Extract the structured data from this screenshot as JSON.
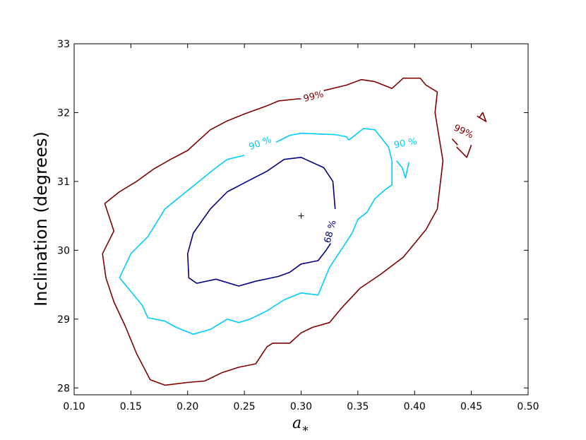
{
  "chart_data": {
    "type": "contour",
    "title": "",
    "xlabel": "a",
    "xlabel_subscript": "∗",
    "ylabel": "Inclination (degrees)",
    "xlim": [
      0.1,
      0.5
    ],
    "ylim": [
      27.9,
      33.0
    ],
    "grid": false,
    "xticks": [
      "0.10",
      "0.15",
      "0.20",
      "0.25",
      "0.30",
      "0.35",
      "0.40",
      "0.45",
      "0.50"
    ],
    "yticks": [
      "28",
      "29",
      "30",
      "31",
      "32",
      "33"
    ],
    "best_fit": {
      "x": 0.3,
      "y": 30.5
    },
    "contours": [
      {
        "level": "68 %",
        "color": "#000080",
        "segments": [
          [
            [
              0.33,
              30.6
            ],
            [
              0.328,
              31.0
            ],
            [
              0.32,
              31.2
            ],
            [
              0.3,
              31.35
            ],
            [
              0.285,
              31.32
            ],
            [
              0.27,
              31.15
            ],
            [
              0.25,
              30.98
            ],
            [
              0.235,
              30.85
            ],
            [
              0.22,
              30.6
            ],
            [
              0.205,
              30.25
            ],
            [
              0.2,
              29.95
            ],
            [
              0.201,
              29.6
            ],
            [
              0.208,
              29.52
            ],
            [
              0.225,
              29.58
            ],
            [
              0.245,
              29.48
            ],
            [
              0.26,
              29.55
            ],
            [
              0.28,
              29.62
            ],
            [
              0.29,
              29.68
            ],
            [
              0.3,
              29.8
            ],
            [
              0.315,
              29.85
            ],
            [
              0.322,
              30.0
            ],
            [
              0.326,
              30.1
            ]
          ]
        ],
        "labels": [
          {
            "text": "68 %",
            "x": 0.326,
            "y": 30.27,
            "angle": -75
          }
        ]
      },
      {
        "level": "90 %",
        "color": "#00ccff",
        "segments": [
          [
            [
              0.342,
              31.6
            ],
            [
              0.355,
              31.77
            ],
            [
              0.365,
              31.75
            ],
            [
              0.377,
              31.5
            ],
            [
              0.38,
              31.3
            ],
            [
              0.38,
              30.95
            ],
            [
              0.374,
              30.88
            ],
            [
              0.365,
              30.75
            ],
            [
              0.358,
              30.55
            ],
            [
              0.35,
              30.45
            ],
            [
              0.345,
              30.25
            ],
            [
              0.335,
              30.0
            ],
            [
              0.325,
              29.75
            ],
            [
              0.315,
              29.35
            ],
            [
              0.3,
              29.38
            ],
            [
              0.285,
              29.28
            ],
            [
              0.27,
              29.12
            ],
            [
              0.255,
              29.0
            ],
            [
              0.245,
              28.95
            ],
            [
              0.235,
              29.0
            ],
            [
              0.22,
              28.85
            ],
            [
              0.205,
              28.78
            ],
            [
              0.19,
              28.88
            ],
            [
              0.18,
              28.97
            ],
            [
              0.165,
              29.02
            ],
            [
              0.16,
              29.2
            ],
            [
              0.15,
              29.4
            ],
            [
              0.14,
              29.6
            ],
            [
              0.15,
              29.95
            ],
            [
              0.165,
              30.2
            ],
            [
              0.18,
              30.6
            ],
            [
              0.195,
              30.8
            ],
            [
              0.21,
              31.0
            ],
            [
              0.225,
              31.2
            ],
            [
              0.235,
              31.32
            ],
            [
              0.25,
              31.38
            ]
          ],
          [
            [
              0.278,
              31.57
            ],
            [
              0.29,
              31.67
            ],
            [
              0.3,
              31.7
            ],
            [
              0.315,
              31.69
            ],
            [
              0.33,
              31.68
            ],
            [
              0.34,
              31.65
            ],
            [
              0.342,
              31.6
            ]
          ],
          [
            [
              0.395,
              31.28
            ],
            [
              0.393,
              31.13
            ],
            [
              0.392,
              31.05
            ],
            [
              0.389,
              31.2
            ],
            [
              0.384,
              31.3
            ]
          ]
        ],
        "labels": [
          {
            "text": "90 %",
            "x": 0.264,
            "y": 31.55,
            "angle": -20
          },
          {
            "text": "90 %",
            "x": 0.392,
            "y": 31.55,
            "angle": -10
          }
        ]
      },
      {
        "level": "99%",
        "color": "#800000",
        "segments": [
          [
            [
              0.32,
              32.32
            ],
            [
              0.34,
              32.4
            ],
            [
              0.353,
              32.48
            ],
            [
              0.365,
              32.45
            ],
            [
              0.38,
              32.35
            ],
            [
              0.39,
              32.5
            ],
            [
              0.405,
              32.5
            ],
            [
              0.41,
              32.4
            ],
            [
              0.42,
              32.3
            ],
            [
              0.418,
              32.0
            ],
            [
              0.425,
              31.3
            ],
            [
              0.42,
              30.6
            ],
            [
              0.41,
              30.3
            ],
            [
              0.4,
              30.1
            ],
            [
              0.39,
              29.9
            ],
            [
              0.37,
              29.65
            ],
            [
              0.352,
              29.45
            ],
            [
              0.335,
              29.15
            ],
            [
              0.325,
              28.95
            ],
            [
              0.31,
              28.88
            ],
            [
              0.3,
              28.8
            ],
            [
              0.29,
              28.65
            ],
            [
              0.275,
              28.65
            ],
            [
              0.27,
              28.6
            ],
            [
              0.26,
              28.35
            ],
            [
              0.245,
              28.3
            ],
            [
              0.23,
              28.22
            ],
            [
              0.215,
              28.1
            ],
            [
              0.2,
              28.08
            ],
            [
              0.18,
              28.04
            ],
            [
              0.167,
              28.12
            ],
            [
              0.155,
              28.5
            ],
            [
              0.145,
              28.9
            ],
            [
              0.135,
              29.25
            ],
            [
              0.128,
              29.6
            ],
            [
              0.125,
              29.95
            ],
            [
              0.135,
              30.28
            ],
            [
              0.127,
              30.68
            ],
            [
              0.14,
              30.85
            ],
            [
              0.155,
              31.0
            ],
            [
              0.17,
              31.18
            ],
            [
              0.185,
              31.32
            ],
            [
              0.2,
              31.45
            ],
            [
              0.22,
              31.75
            ],
            [
              0.235,
              31.88
            ],
            [
              0.25,
              31.98
            ],
            [
              0.27,
              32.1
            ],
            [
              0.28,
              32.17
            ],
            [
              0.297,
              32.2
            ],
            [
              0.3,
              32.2
            ]
          ],
          [
            [
              0.433,
              31.62
            ],
            [
              0.438,
              31.53
            ]
          ],
          [
            [
              0.45,
              31.53
            ],
            [
              0.446,
              31.35
            ],
            [
              0.437,
              31.5
            ]
          ],
          [
            [
              0.457,
              31.93
            ],
            [
              0.46,
              32.0
            ],
            [
              0.463,
              31.87
            ],
            [
              0.455,
              31.95
            ]
          ]
        ],
        "labels": [
          {
            "text": "99%",
            "x": 0.311,
            "y": 32.23,
            "angle": -15
          },
          {
            "text": "99%",
            "x": 0.443,
            "y": 31.72,
            "angle": 25
          }
        ]
      }
    ]
  }
}
